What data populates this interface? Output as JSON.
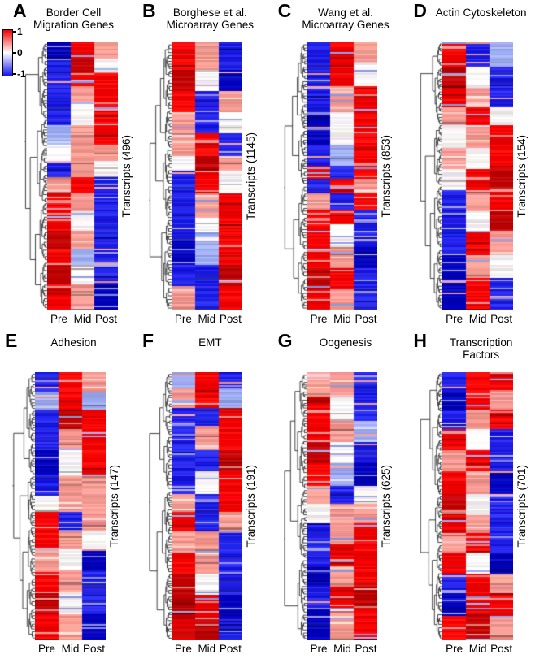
{
  "figure": {
    "background": "#ffffff",
    "column_labels": [
      "Pre",
      "Mid",
      "Post"
    ],
    "colorbar": {
      "tick_labels": [
        "1",
        "0",
        "-1"
      ],
      "max": 1,
      "min": -1,
      "gradient_top": "#f40000",
      "gradient_mid": "#ffffff",
      "gradient_bottom": "#1414f0"
    },
    "palette": {
      "R2": "#c00000",
      "R": "#f40000",
      "P": "#f59a92",
      "W": "#f7f3f4",
      "LB": "#9fadf0",
      "B": "#2323e8",
      "B2": "#0000bc"
    }
  },
  "chart_data": [
    {
      "type": "heatmap",
      "panel": "A",
      "title": "Border Cell\nMigration Genes",
      "ylabel": "Transcripts (496)",
      "n_transcripts": 496,
      "columns": [
        "Pre",
        "Mid",
        "Post"
      ],
      "value_range": [
        -1,
        1
      ],
      "colormap": "blue-white-red",
      "row_blocks": [
        {
          "f": 0.06,
          "c": [
            "B2",
            "R",
            "P"
          ]
        },
        {
          "f": 0.05,
          "c": [
            "B",
            "R2",
            "W"
          ]
        },
        {
          "f": 0.05,
          "c": [
            "B",
            "R",
            "R"
          ]
        },
        {
          "f": 0.07,
          "c": [
            "B",
            "P",
            "R"
          ]
        },
        {
          "f": 0.08,
          "c": [
            "B",
            "W",
            "R"
          ]
        },
        {
          "f": 0.07,
          "c": [
            "LB",
            "P",
            "R"
          ]
        },
        {
          "f": 0.06,
          "c": [
            "W",
            "P",
            "P"
          ]
        },
        {
          "f": 0.06,
          "c": [
            "B",
            "P",
            "W"
          ]
        },
        {
          "f": 0.06,
          "c": [
            "P",
            "R",
            "B"
          ]
        },
        {
          "f": 0.07,
          "c": [
            "R",
            "P",
            "B"
          ]
        },
        {
          "f": 0.07,
          "c": [
            "R",
            "W",
            "B"
          ]
        },
        {
          "f": 0.07,
          "c": [
            "R2",
            "P",
            "B"
          ]
        },
        {
          "f": 0.06,
          "c": [
            "R",
            "LB",
            "B"
          ]
        },
        {
          "f": 0.07,
          "c": [
            "R2",
            "W",
            "B"
          ]
        },
        {
          "f": 0.1,
          "c": [
            "R",
            "P",
            "B2"
          ]
        }
      ]
    },
    {
      "type": "heatmap",
      "panel": "B",
      "title": "Borghese et al.\nMicroarray Genes",
      "ylabel": "Transcripts (1145)",
      "n_transcripts": 1145,
      "columns": [
        "Pre",
        "Mid",
        "Post"
      ],
      "value_range": [
        -1,
        1
      ],
      "colormap": "blue-white-red",
      "row_blocks": [
        {
          "f": 0.1,
          "c": [
            "R",
            "P",
            "B"
          ]
        },
        {
          "f": 0.08,
          "c": [
            "R2",
            "W",
            "B2"
          ]
        },
        {
          "f": 0.08,
          "c": [
            "R",
            "B",
            "P"
          ]
        },
        {
          "f": 0.08,
          "c": [
            "P",
            "B",
            "W"
          ]
        },
        {
          "f": 0.08,
          "c": [
            "P",
            "R",
            "B"
          ]
        },
        {
          "f": 0.06,
          "c": [
            "W",
            "R2",
            "P"
          ]
        },
        {
          "f": 0.08,
          "c": [
            "B",
            "R",
            "W"
          ]
        },
        {
          "f": 0.09,
          "c": [
            "B",
            "P",
            "R"
          ]
        },
        {
          "f": 0.09,
          "c": [
            "B",
            "W",
            "R"
          ]
        },
        {
          "f": 0.09,
          "c": [
            "B2",
            "LB",
            "R"
          ]
        },
        {
          "f": 0.08,
          "c": [
            "B",
            "B",
            "R2"
          ]
        },
        {
          "f": 0.09,
          "c": [
            "P",
            "B",
            "R"
          ]
        }
      ]
    },
    {
      "type": "heatmap",
      "panel": "C",
      "title": "Wang et al.\nMicroarray Genes",
      "ylabel": "Transcripts (853)",
      "n_transcripts": 853,
      "columns": [
        "Pre",
        "Mid",
        "Post"
      ],
      "value_range": [
        -1,
        1
      ],
      "colormap": "blue-white-red",
      "row_blocks": [
        {
          "f": 0.08,
          "c": [
            "B",
            "R",
            "P"
          ]
        },
        {
          "f": 0.08,
          "c": [
            "B",
            "R",
            "W"
          ]
        },
        {
          "f": 0.1,
          "c": [
            "B",
            "P",
            "R"
          ]
        },
        {
          "f": 0.12,
          "c": [
            "B2",
            "W",
            "R"
          ]
        },
        {
          "f": 0.08,
          "c": [
            "B",
            "LB",
            "R"
          ]
        },
        {
          "f": 0.05,
          "c": [
            "R",
            "B",
            "R"
          ]
        },
        {
          "f": 0.05,
          "c": [
            "B",
            "R",
            "P"
          ]
        },
        {
          "f": 0.06,
          "c": [
            "P",
            "B",
            "R"
          ]
        },
        {
          "f": 0.06,
          "c": [
            "R",
            "R",
            "B"
          ]
        },
        {
          "f": 0.08,
          "c": [
            "R",
            "W",
            "B"
          ]
        },
        {
          "f": 0.08,
          "c": [
            "R",
            "P",
            "B2"
          ]
        },
        {
          "f": 0.08,
          "c": [
            "R2",
            "R",
            "B"
          ]
        },
        {
          "f": 0.08,
          "c": [
            "R",
            "P",
            "B"
          ]
        }
      ]
    },
    {
      "type": "heatmap",
      "panel": "D",
      "title": "Actin Cytoskeleton",
      "ylabel": "Transcripts (154)",
      "n_transcripts": 154,
      "columns": [
        "Pre",
        "Mid",
        "Post"
      ],
      "value_range": [
        -1,
        1
      ],
      "colormap": "blue-white-red",
      "row_blocks": [
        {
          "f": 0.09,
          "c": [
            "R",
            "B",
            "LB"
          ]
        },
        {
          "f": 0.08,
          "c": [
            "R2",
            "W",
            "B"
          ]
        },
        {
          "f": 0.07,
          "c": [
            "R",
            "P",
            "B"
          ]
        },
        {
          "f": 0.07,
          "c": [
            "P",
            "R",
            "W"
          ]
        },
        {
          "f": 0.08,
          "c": [
            "W",
            "P",
            "R"
          ]
        },
        {
          "f": 0.08,
          "c": [
            "P",
            "W",
            "R"
          ]
        },
        {
          "f": 0.08,
          "c": [
            "W",
            "R",
            "R2"
          ]
        },
        {
          "f": 0.08,
          "c": [
            "B",
            "P",
            "R"
          ]
        },
        {
          "f": 0.08,
          "c": [
            "B",
            "W",
            "R2"
          ]
        },
        {
          "f": 0.08,
          "c": [
            "B",
            "R",
            "P"
          ]
        },
        {
          "f": 0.09,
          "c": [
            "B2",
            "P",
            "W"
          ]
        },
        {
          "f": 0.12,
          "c": [
            "B2",
            "R",
            "B"
          ]
        }
      ]
    },
    {
      "type": "heatmap",
      "panel": "E",
      "title": "Adhesion",
      "ylabel": "Transcripts (147)",
      "n_transcripts": 147,
      "columns": [
        "Pre",
        "Mid",
        "Post"
      ],
      "value_range": [
        -1,
        1
      ],
      "colormap": "blue-white-red",
      "row_blocks": [
        {
          "f": 0.07,
          "c": [
            "B",
            "R",
            "P"
          ]
        },
        {
          "f": 0.07,
          "c": [
            "LB",
            "R",
            "LB"
          ]
        },
        {
          "f": 0.07,
          "c": [
            "B",
            "R2",
            "R"
          ]
        },
        {
          "f": 0.08,
          "c": [
            "B",
            "P",
            "R"
          ]
        },
        {
          "f": 0.09,
          "c": [
            "B2",
            "W",
            "R"
          ]
        },
        {
          "f": 0.08,
          "c": [
            "B",
            "P",
            "P"
          ]
        },
        {
          "f": 0.06,
          "c": [
            "W",
            "P",
            "P"
          ]
        },
        {
          "f": 0.07,
          "c": [
            "R",
            "B",
            "P"
          ]
        },
        {
          "f": 0.07,
          "c": [
            "R",
            "P",
            "W"
          ]
        },
        {
          "f": 0.08,
          "c": [
            "P",
            "W",
            "B2"
          ]
        },
        {
          "f": 0.08,
          "c": [
            "R",
            "P",
            "B"
          ]
        },
        {
          "f": 0.08,
          "c": [
            "R2",
            "W",
            "B"
          ]
        },
        {
          "f": 0.1,
          "c": [
            "R",
            "P",
            "B2"
          ]
        }
      ]
    },
    {
      "type": "heatmap",
      "panel": "F",
      "title": "EMT",
      "ylabel": "Transcripts (191)",
      "n_transcripts": 191,
      "columns": [
        "Pre",
        "Mid",
        "Post"
      ],
      "value_range": [
        -1,
        1
      ],
      "colormap": "blue-white-red",
      "row_blocks": [
        {
          "f": 0.06,
          "c": [
            "LB",
            "R",
            "B"
          ]
        },
        {
          "f": 0.07,
          "c": [
            "P",
            "R",
            "LB"
          ]
        },
        {
          "f": 0.07,
          "c": [
            "B",
            "B",
            "R"
          ]
        },
        {
          "f": 0.09,
          "c": [
            "B",
            "P",
            "R"
          ]
        },
        {
          "f": 0.08,
          "c": [
            "B",
            "B",
            "R2"
          ]
        },
        {
          "f": 0.08,
          "c": [
            "B",
            "W",
            "R"
          ]
        },
        {
          "f": 0.07,
          "c": [
            "P",
            "B",
            "R"
          ]
        },
        {
          "f": 0.07,
          "c": [
            "R",
            "B",
            "P"
          ]
        },
        {
          "f": 0.08,
          "c": [
            "P",
            "P",
            "B"
          ]
        },
        {
          "f": 0.08,
          "c": [
            "R",
            "P",
            "B"
          ]
        },
        {
          "f": 0.08,
          "c": [
            "R2",
            "W",
            "B"
          ]
        },
        {
          "f": 0.09,
          "c": [
            "R2",
            "R",
            "B2"
          ]
        },
        {
          "f": 0.08,
          "c": [
            "R",
            "R2",
            "B"
          ]
        }
      ]
    },
    {
      "type": "heatmap",
      "panel": "G",
      "title": "Oogenesis",
      "ylabel": "Transcripts (625)",
      "n_transcripts": 625,
      "columns": [
        "Pre",
        "Mid",
        "Post"
      ],
      "value_range": [
        -1,
        1
      ],
      "colormap": "blue-white-red",
      "row_blocks": [
        {
          "f": 0.09,
          "c": [
            "P",
            "P",
            "B"
          ]
        },
        {
          "f": 0.09,
          "c": [
            "R",
            "W",
            "B"
          ]
        },
        {
          "f": 0.08,
          "c": [
            "R",
            "P",
            "LB"
          ]
        },
        {
          "f": 0.08,
          "c": [
            "R2",
            "W",
            "B"
          ]
        },
        {
          "f": 0.08,
          "c": [
            "R",
            "LB",
            "B2"
          ]
        },
        {
          "f": 0.07,
          "c": [
            "P",
            "B",
            "W"
          ]
        },
        {
          "f": 0.07,
          "c": [
            "W",
            "P",
            "P"
          ]
        },
        {
          "f": 0.08,
          "c": [
            "B",
            "P",
            "R"
          ]
        },
        {
          "f": 0.08,
          "c": [
            "B",
            "R",
            "R"
          ]
        },
        {
          "f": 0.08,
          "c": [
            "B2",
            "P",
            "R"
          ]
        },
        {
          "f": 0.08,
          "c": [
            "B",
            "R",
            "R2"
          ]
        },
        {
          "f": 0.12,
          "c": [
            "B2",
            "P",
            "R"
          ]
        }
      ]
    },
    {
      "type": "heatmap",
      "panel": "H",
      "title": "Transcription\nFactors",
      "ylabel": "Transcripts (701)",
      "n_transcripts": 701,
      "columns": [
        "Pre",
        "Mid",
        "Post"
      ],
      "value_range": [
        -1,
        1
      ],
      "colormap": "blue-white-red",
      "row_blocks": [
        {
          "f": 0.07,
          "c": [
            "B",
            "R",
            "R"
          ]
        },
        {
          "f": 0.07,
          "c": [
            "B2",
            "R",
            "P"
          ]
        },
        {
          "f": 0.07,
          "c": [
            "B",
            "P",
            "R"
          ]
        },
        {
          "f": 0.08,
          "c": [
            "R",
            "W",
            "B"
          ]
        },
        {
          "f": 0.08,
          "c": [
            "P",
            "R",
            "B"
          ]
        },
        {
          "f": 0.08,
          "c": [
            "R",
            "P",
            "B2"
          ]
        },
        {
          "f": 0.08,
          "c": [
            "R2",
            "W",
            "B"
          ]
        },
        {
          "f": 0.07,
          "c": [
            "R",
            "P",
            "B"
          ]
        },
        {
          "f": 0.07,
          "c": [
            "P",
            "R",
            "B"
          ]
        },
        {
          "f": 0.08,
          "c": [
            "R",
            "W",
            "B2"
          ]
        },
        {
          "f": 0.07,
          "c": [
            "B",
            "R",
            "P"
          ]
        },
        {
          "f": 0.09,
          "c": [
            "B2",
            "R",
            "R"
          ]
        },
        {
          "f": 0.09,
          "c": [
            "R",
            "R2",
            "P"
          ]
        }
      ]
    }
  ]
}
